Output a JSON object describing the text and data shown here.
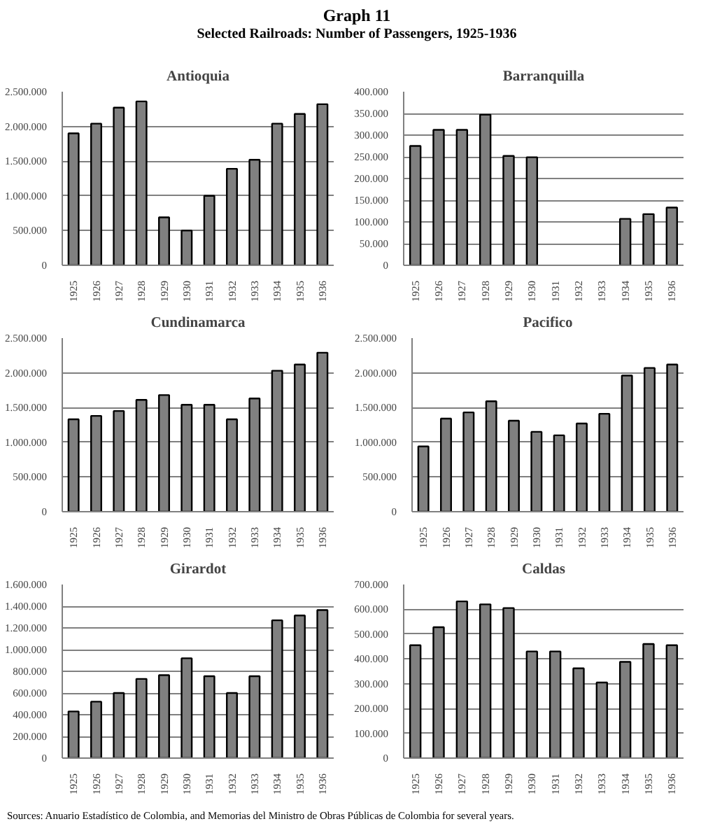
{
  "chart_data": [
    {
      "type": "other",
      "title": "Graph 11",
      "subtitle": "Selected Railroads: Number of Passengers, 1925-1936"
    },
    {
      "type": "bar",
      "title": "Antioquia",
      "categories": [
        "1925",
        "1926",
        "1927",
        "1928",
        "1929",
        "1930",
        "1931",
        "1932",
        "1933",
        "1934",
        "1935",
        "1936"
      ],
      "color": "#808080",
      "values": [
        1900000,
        2040000,
        2270000,
        2360000,
        690000,
        500000,
        1000000,
        1390000,
        1520000,
        2040000,
        2180000,
        2320000
      ],
      "ylim": [
        0,
        2500000
      ],
      "yticks": [
        0,
        {
          "value": 500000,
          "label": "500.000"
        },
        {
          "value": 1000000,
          "label": "1.000.000"
        },
        {
          "value": 1500000,
          "label": "1.500.000"
        },
        {
          "value": 2000000,
          "label": "2.000.000"
        },
        {
          "value": 2500000,
          "label": "2.500.000"
        }
      ],
      "grid": "y"
    },
    {
      "type": "bar",
      "title": "Barranquilla",
      "categories": [
        "1925",
        "1926",
        "1927",
        "1928",
        "1929",
        "1930",
        "1931",
        "1932",
        "1933",
        "1934",
        "1935",
        "1936"
      ],
      "color": "#808080",
      "values": [
        275000,
        312000,
        312000,
        347000,
        252000,
        249000,
        null,
        null,
        null,
        107000,
        118000,
        133000
      ],
      "ylim": [
        0,
        400000
      ],
      "yticks": [
        0,
        {
          "value": 50000,
          "label": "50.000"
        },
        {
          "value": 100000,
          "label": "100.000"
        },
        {
          "value": 150000,
          "label": "150.000"
        },
        {
          "value": 200000,
          "label": "200.000"
        },
        {
          "value": 250000,
          "label": "250.000"
        },
        {
          "value": 300000,
          "label": "300.000"
        },
        {
          "value": 350000,
          "label": "350.000"
        },
        {
          "value": 400000,
          "label": "400.000"
        }
      ],
      "grid": "y"
    },
    {
      "type": "bar",
      "title": "Cundinamarca",
      "categories": [
        "1925",
        "1926",
        "1927",
        "1928",
        "1929",
        "1930",
        "1931",
        "1932",
        "1933",
        "1934",
        "1935",
        "1936"
      ],
      "color": "#808080",
      "values": [
        1330000,
        1380000,
        1450000,
        1610000,
        1680000,
        1540000,
        1540000,
        1330000,
        1630000,
        2030000,
        2120000,
        2290000
      ],
      "ylim": [
        0,
        2500000
      ],
      "yticks": [
        0,
        {
          "value": 500000,
          "label": "500.000"
        },
        {
          "value": 1000000,
          "label": "1.000.000"
        },
        {
          "value": 1500000,
          "label": "1.500.000"
        },
        {
          "value": 2000000,
          "label": "2.000.000"
        },
        {
          "value": 2500000,
          "label": "2.500.000"
        }
      ],
      "grid": "y"
    },
    {
      "type": "bar",
      "title": "Pacifico",
      "categories": [
        "1925",
        "1926",
        "1927",
        "1928",
        "1929",
        "1930",
        "1931",
        "1932",
        "1933",
        "1934",
        "1935",
        "1936"
      ],
      "color": "#808080",
      "values": [
        940000,
        1340000,
        1430000,
        1590000,
        1310000,
        1150000,
        1100000,
        1270000,
        1410000,
        1960000,
        2070000,
        2120000
      ],
      "ylim": [
        0,
        2500000
      ],
      "yticks": [
        0,
        {
          "value": 500000,
          "label": "500.000"
        },
        {
          "value": 1000000,
          "label": "1.000.000"
        },
        {
          "value": 1500000,
          "label": "1.500.000"
        },
        {
          "value": 2000000,
          "label": "2.000.000"
        },
        {
          "value": 2500000,
          "label": "2.500.000"
        }
      ],
      "grid": "y"
    },
    {
      "type": "bar",
      "title": "Girardot",
      "categories": [
        "1925",
        "1926",
        "1927",
        "1928",
        "1929",
        "1930",
        "1931",
        "1932",
        "1933",
        "1934",
        "1935",
        "1936"
      ],
      "color": "#808080",
      "values": [
        430000,
        520000,
        600000,
        730000,
        765000,
        920000,
        755000,
        600000,
        755000,
        1270000,
        1315000,
        1365000
      ],
      "ylim": [
        0,
        1600000
      ],
      "yticks": [
        0,
        {
          "value": 200000,
          "label": "200.000"
        },
        {
          "value": 400000,
          "label": "400.000"
        },
        {
          "value": 600000,
          "label": "600.000"
        },
        {
          "value": 800000,
          "label": "800.000"
        },
        {
          "value": 1000000,
          "label": "1.000.000"
        },
        {
          "value": 1200000,
          "label": "1.200.000"
        },
        {
          "value": 1400000,
          "label": "1.400.000"
        },
        {
          "value": 1600000,
          "label": "1.600.000"
        }
      ],
      "grid": "y"
    },
    {
      "type": "bar",
      "title": "Caldas",
      "categories": [
        "1925",
        "1926",
        "1927",
        "1928",
        "1929",
        "1930",
        "1931",
        "1932",
        "1933",
        "1934",
        "1935",
        "1936"
      ],
      "color": "#808080",
      "values": [
        455000,
        528000,
        632000,
        620000,
        605000,
        430000,
        430000,
        362000,
        305000,
        388000,
        460000,
        455000
      ],
      "ylim": [
        0,
        700000
      ],
      "yticks": [
        0,
        {
          "value": 100000,
          "label": "100.000"
        },
        {
          "value": 200000,
          "label": "200.000"
        },
        {
          "value": 300000,
          "label": "300.000"
        },
        {
          "value": 400000,
          "label": "400.000"
        },
        {
          "value": 500000,
          "label": "500.000"
        },
        {
          "value": 600000,
          "label": "600.000"
        },
        {
          "value": 700000,
          "label": "700.000"
        }
      ],
      "grid": "y"
    },
    {
      "type": "other",
      "annotations": [
        "Sources: Anuario Estadístico de Colombia, and Memorias del Ministro de Obras Públicas de Colombia for several years."
      ]
    }
  ]
}
